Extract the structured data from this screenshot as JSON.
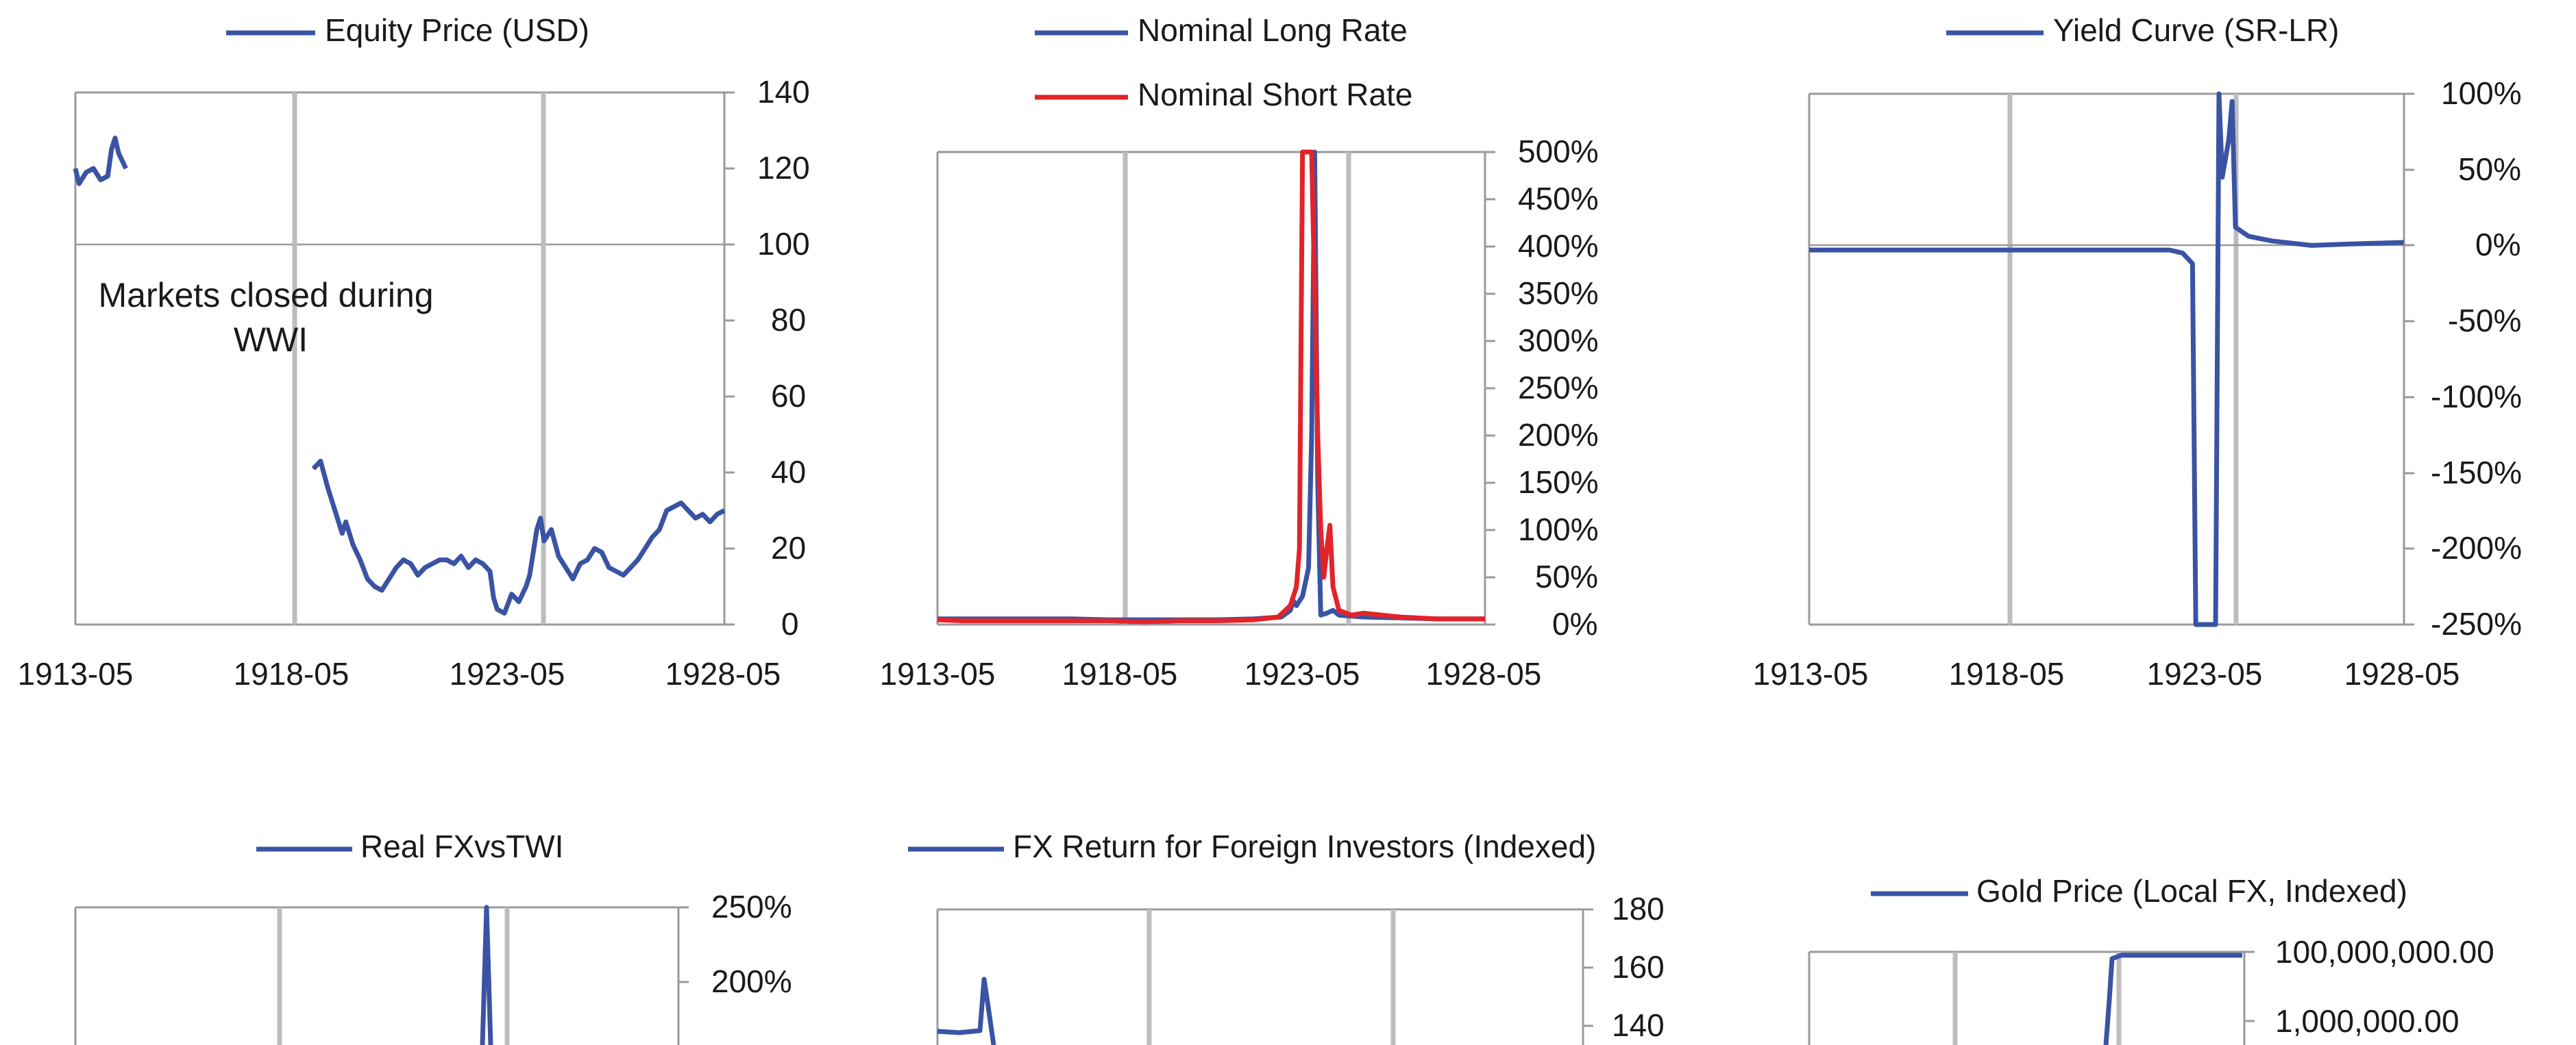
{
  "colors": {
    "blue": "#3a53a4",
    "red": "#e2242a",
    "axis": "#9a9a9a",
    "vline": "#bdbdbd",
    "text": "#1a1a1a"
  },
  "chart_data": [
    {
      "id": "equity",
      "type": "line",
      "title": "",
      "xlabel": "",
      "ylabel": "",
      "x_ticks": [
        "1913-05",
        "1918-05",
        "1923-05",
        "1928-05"
      ],
      "xlim": [
        "1913-05",
        "1928-05"
      ],
      "y_ticks": [
        "140",
        "120",
        "100",
        "80",
        "60",
        "40",
        "20",
        "0"
      ],
      "ylim": [
        0,
        140
      ],
      "grid": false,
      "legend_position": "top",
      "vlines": [
        "1918-05",
        "1923-05"
      ],
      "baseline_y": 100,
      "annotation": "Markets closed during\nWWI",
      "series": [
        {
          "name": "Equity Price (USD)",
          "color_key": "blue",
          "segments": [
            [
              [
                "1913-05",
                120
              ],
              [
                "1913-06",
                116
              ],
              [
                "1913-08",
                119
              ],
              [
                "1913-10",
                120
              ],
              [
                "1913-12",
                117
              ],
              [
                "1914-02",
                118
              ],
              [
                "1914-03",
                125
              ],
              [
                "1914-04",
                128
              ],
              [
                "1914-05",
                124
              ],
              [
                "1914-07",
                120
              ]
            ],
            [
              [
                "1918-11",
                41
              ],
              [
                "1919-01",
                43
              ],
              [
                "1919-03",
                36
              ],
              [
                "1919-05",
                30
              ],
              [
                "1919-07",
                24
              ],
              [
                "1919-08",
                27
              ],
              [
                "1919-10",
                21
              ],
              [
                "1919-12",
                17
              ],
              [
                "1920-02",
                12
              ],
              [
                "1920-04",
                10
              ],
              [
                "1920-06",
                9
              ],
              [
                "1920-08",
                12
              ],
              [
                "1920-10",
                15
              ],
              [
                "1920-12",
                17
              ],
              [
                "1921-02",
                16
              ],
              [
                "1921-04",
                13
              ],
              [
                "1921-06",
                15
              ],
              [
                "1921-08",
                16
              ],
              [
                "1921-10",
                17
              ],
              [
                "1921-12",
                17
              ],
              [
                "1922-02",
                16
              ],
              [
                "1922-04",
                18
              ],
              [
                "1922-06",
                15
              ],
              [
                "1922-08",
                17
              ],
              [
                "1922-10",
                16
              ],
              [
                "1922-12",
                14
              ],
              [
                "1923-01",
                7
              ],
              [
                "1923-02",
                4
              ],
              [
                "1923-04",
                3
              ],
              [
                "1923-06",
                8
              ],
              [
                "1923-08",
                6
              ],
              [
                "1923-10",
                10
              ],
              [
                "1923-11",
                13
              ],
              [
                "1924-01",
                25
              ],
              [
                "1924-02",
                28
              ],
              [
                "1924-03",
                22
              ],
              [
                "1924-05",
                25
              ],
              [
                "1924-07",
                18
              ],
              [
                "1924-09",
                15
              ],
              [
                "1924-11",
                12
              ],
              [
                "1925-01",
                16
              ],
              [
                "1925-03",
                17
              ],
              [
                "1925-05",
                20
              ],
              [
                "1925-07",
                19
              ],
              [
                "1925-09",
                15
              ],
              [
                "1925-11",
                14
              ],
              [
                "1926-01",
                13
              ],
              [
                "1926-03",
                15
              ],
              [
                "1926-05",
                17
              ],
              [
                "1926-07",
                20
              ],
              [
                "1926-09",
                23
              ],
              [
                "1926-11",
                25
              ],
              [
                "1927-01",
                30
              ],
              [
                "1927-03",
                31
              ],
              [
                "1927-05",
                32
              ],
              [
                "1927-07",
                30
              ],
              [
                "1927-09",
                28
              ],
              [
                "1927-11",
                29
              ],
              [
                "1928-01",
                27
              ],
              [
                "1928-03",
                29
              ],
              [
                "1928-05",
                30
              ]
            ]
          ]
        }
      ]
    },
    {
      "id": "rates",
      "type": "line",
      "title": "",
      "xlabel": "",
      "ylabel": "",
      "x_ticks": [
        "1913-05",
        "1918-05",
        "1923-05",
        "1928-05"
      ],
      "xlim": [
        "1913-05",
        "1928-05"
      ],
      "y_ticks": [
        "500%",
        "450%",
        "400%",
        "350%",
        "300%",
        "250%",
        "200%",
        "150%",
        "100%",
        "50%",
        "0%"
      ],
      "ylim": [
        0,
        500
      ],
      "grid": false,
      "legend_position": "top",
      "vlines": [
        "1918-05",
        "1924-05"
      ],
      "series": [
        {
          "name": "Nominal Long Rate",
          "color_key": "blue",
          "points": [
            [
              "1913-05",
              6
            ],
            [
              "1914-01",
              6
            ],
            [
              "1915-01",
              6
            ],
            [
              "1916-01",
              6
            ],
            [
              "1917-01",
              6
            ],
            [
              "1918-01",
              5
            ],
            [
              "1919-01",
              5
            ],
            [
              "1920-01",
              5
            ],
            [
              "1921-01",
              5
            ],
            [
              "1922-01",
              6
            ],
            [
              "1922-10",
              8
            ],
            [
              "1923-01",
              15
            ],
            [
              "1923-02",
              25
            ],
            [
              "1923-03",
              20
            ],
            [
              "1923-05",
              30
            ],
            [
              "1923-07",
              60
            ],
            [
              "1923-08",
              200
            ],
            [
              "1923-09",
              500
            ],
            [
              "1923-10",
              150
            ],
            [
              "1923-11",
              10
            ],
            [
              "1924-01",
              12
            ],
            [
              "1924-03",
              15
            ],
            [
              "1924-05",
              10
            ],
            [
              "1925-01",
              8
            ],
            [
              "1926-01",
              7
            ],
            [
              "1927-01",
              6
            ],
            [
              "1928-05",
              6
            ]
          ]
        },
        {
          "name": "Nominal Short Rate",
          "color_key": "red",
          "points": [
            [
              "1913-05",
              5
            ],
            [
              "1914-01",
              4
            ],
            [
              "1915-01",
              4
            ],
            [
              "1916-01",
              4
            ],
            [
              "1917-01",
              4
            ],
            [
              "1918-01",
              4
            ],
            [
              "1919-01",
              3
            ],
            [
              "1920-01",
              4
            ],
            [
              "1921-01",
              4
            ],
            [
              "1922-01",
              5
            ],
            [
              "1922-09",
              8
            ],
            [
              "1923-01",
              20
            ],
            [
              "1923-03",
              40
            ],
            [
              "1923-04",
              80
            ],
            [
              "1923-05",
              500
            ],
            [
              "1923-08",
              500
            ],
            [
              "1923-10",
              200
            ],
            [
              "1923-11",
              100
            ],
            [
              "1923-12",
              50
            ],
            [
              "1924-01",
              80
            ],
            [
              "1924-02",
              105
            ],
            [
              "1924-03",
              40
            ],
            [
              "1924-05",
              15
            ],
            [
              "1924-09",
              10
            ],
            [
              "1925-01",
              12
            ],
            [
              "1926-01",
              8
            ],
            [
              "1927-01",
              6
            ],
            [
              "1928-05",
              6
            ]
          ]
        }
      ]
    },
    {
      "id": "yield",
      "type": "line",
      "title": "",
      "xlabel": "",
      "ylabel": "",
      "x_ticks": [
        "1913-05",
        "1918-05",
        "1923-05",
        "1928-05"
      ],
      "xlim": [
        "1913-05",
        "1928-05"
      ],
      "y_ticks": [
        "100%",
        "50%",
        "0%",
        "-50%",
        "-100%",
        "-150%",
        "-200%",
        "-250%"
      ],
      "ylim": [
        -250,
        100
      ],
      "grid": false,
      "legend_position": "top",
      "vlines": [
        "1918-05",
        "1924-05"
      ],
      "baseline_y": 0,
      "series": [
        {
          "name": "Yield Curve (SR-LR)",
          "color_key": "blue",
          "points": [
            [
              "1913-05",
              -3
            ],
            [
              "1915-01",
              -3
            ],
            [
              "1917-01",
              -3
            ],
            [
              "1919-01",
              -3
            ],
            [
              "1921-01",
              -3
            ],
            [
              "1922-06",
              -3
            ],
            [
              "1922-10",
              -5
            ],
            [
              "1923-01",
              -12
            ],
            [
              "1923-02",
              -250
            ],
            [
              "1923-08",
              -250
            ],
            [
              "1923-09",
              100
            ],
            [
              "1923-10",
              45
            ],
            [
              "1923-12",
              70
            ],
            [
              "1924-01",
              95
            ],
            [
              "1924-02",
              12
            ],
            [
              "1924-06",
              6
            ],
            [
              "1925-01",
              3
            ],
            [
              "1926-01",
              0
            ],
            [
              "1927-01",
              1
            ],
            [
              "1928-05",
              2
            ]
          ]
        }
      ]
    },
    {
      "id": "realfx",
      "type": "line",
      "title": "",
      "xlabel": "",
      "ylabel": "",
      "x_ticks": [],
      "y_ticks": [
        "250%",
        "200%"
      ],
      "ylim": [
        0,
        250
      ],
      "grid": false,
      "legend_position": "top",
      "vlines": [],
      "series": [
        {
          "name": "Real FXvsTWI",
          "color_key": "blue",
          "points": []
        }
      ]
    },
    {
      "id": "fxreturn",
      "type": "line",
      "title": "",
      "xlabel": "",
      "ylabel": "",
      "x_ticks": [],
      "y_ticks": [
        "180",
        "160",
        "140"
      ],
      "ylim": [
        0,
        180
      ],
      "grid": false,
      "legend_position": "top",
      "vlines": [],
      "series": [
        {
          "name": "FX Return for Foreign Investors (Indexed)",
          "color_key": "blue",
          "points": []
        }
      ]
    },
    {
      "id": "gold",
      "type": "line",
      "title": "",
      "xlabel": "",
      "ylabel": "",
      "x_ticks": [],
      "y_ticks": [
        "100,000,000.00",
        "1,000,000.00"
      ],
      "ylim": [
        1,
        100000000
      ],
      "y_scale": "log",
      "grid": false,
      "legend_position": "top",
      "vlines": [],
      "series": [
        {
          "name": "Gold Price (Local FX, Indexed)",
          "color_key": "blue",
          "points": []
        }
      ]
    }
  ]
}
